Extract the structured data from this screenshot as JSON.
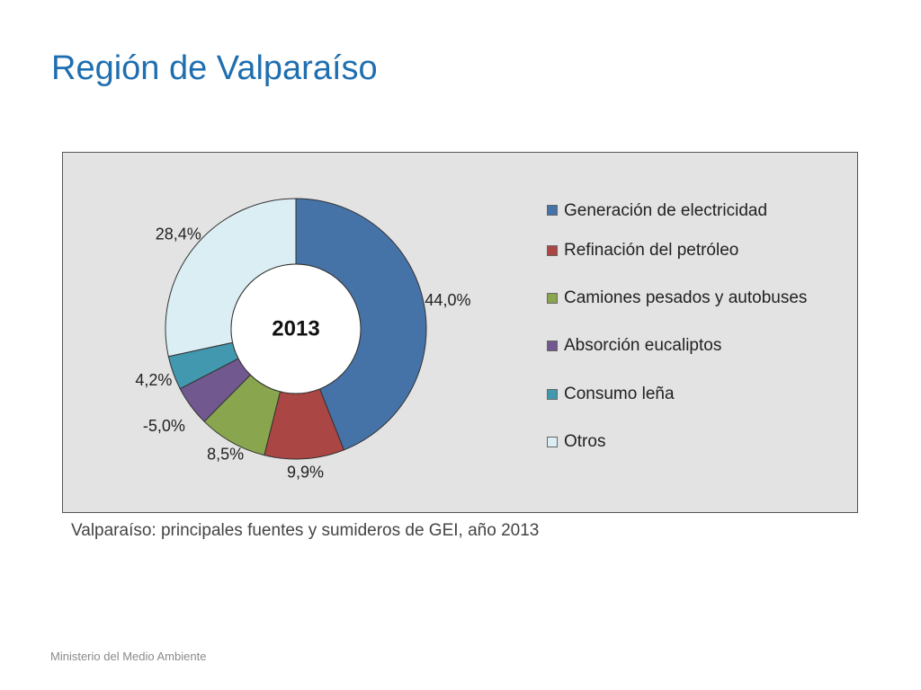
{
  "slide": {
    "title": "Región de Valparaíso",
    "caption": "Valparaíso: principales fuentes y sumideros de GEI, año 2013",
    "footer": "Ministerio del Medio Ambiente"
  },
  "chart_data": {
    "type": "pie",
    "variant": "donut",
    "center_label": "2013",
    "legend_position": "right",
    "categories": [
      "Generación de electricidad",
      "Refinación del petróleo",
      "Camiones pesados y autobuses",
      "Absorción eucaliptos",
      "Consumo leña",
      "Otros"
    ],
    "values": [
      44.0,
      9.9,
      8.5,
      -5.0,
      4.2,
      28.4
    ],
    "labels": [
      "44,0%",
      "9,9%",
      "8,5%",
      "-5,0%",
      "4,2%",
      "28,4%"
    ],
    "colors": [
      "#4572a7",
      "#aa4643",
      "#89a54e",
      "#71588f",
      "#4198af",
      "#dbeef4"
    ]
  }
}
